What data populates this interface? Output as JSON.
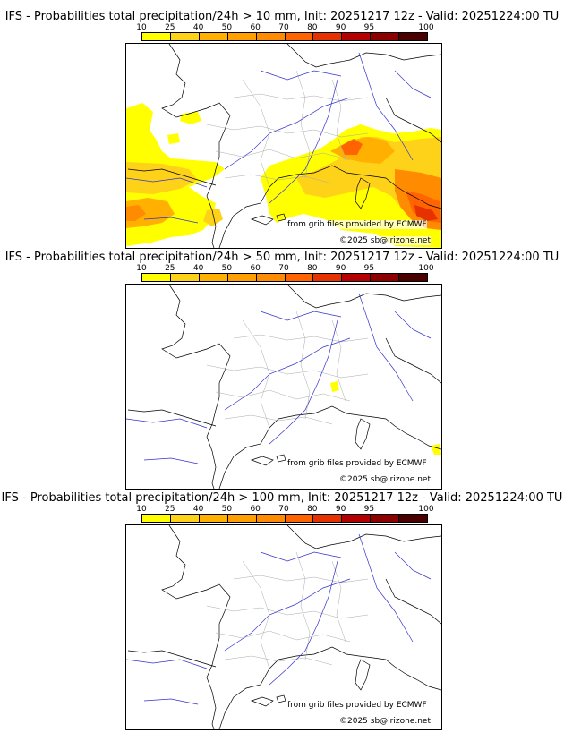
{
  "colorbar": {
    "ticks": [
      "10",
      "25",
      "40",
      "50",
      "60",
      "70",
      "80",
      "90",
      "95",
      "100"
    ],
    "colors": [
      "#ffff00",
      "#ffd21a",
      "#ffb000",
      "#ffa000",
      "#ff8c00",
      "#ff6400",
      "#e63200",
      "#b40000",
      "#8c0000",
      "#4b0000"
    ]
  },
  "panels": [
    {
      "title": "IFS - Probabilities total precipitation/24h > 10 mm, Init: 20251217 12z - Valid: 20251224:00 TU",
      "credit_source": "from grib files provided by ECMWF",
      "credit_copy": "©2025 sb@irizone.net"
    },
    {
      "title": "IFS - Probabilities total precipitation/24h > 50 mm, Init: 20251217 12z - Valid: 20251224:00 TU",
      "credit_source": "from grib files provided by ECMWF",
      "credit_copy": "©2025 sb@irizone.net"
    },
    {
      "title": "IFS - Probabilities total precipitation/24h > 100 mm, Init: 20251217 12z - Valid: 20251224:00 TU",
      "credit_source": "from grib files provided by ECMWF",
      "credit_copy": "©2025 sb@irizone.net"
    }
  ]
}
